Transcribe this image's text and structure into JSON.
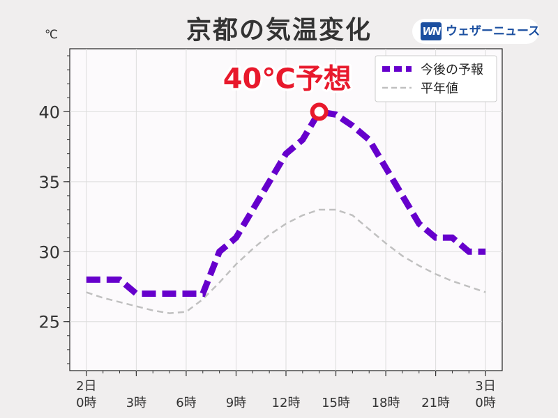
{
  "header": {
    "title": "京都の気温変化",
    "logo": {
      "mark": "WN",
      "text": "ウェザーニュース",
      "color": "#1b4fa0"
    }
  },
  "chart_data": {
    "type": "line",
    "title": "京都の気温変化",
    "ylabel": "℃",
    "xlabel": "",
    "ylim": [
      21.5,
      44.5
    ],
    "xlim": [
      -1,
      25
    ],
    "yticks": [
      25,
      30,
      35,
      40
    ],
    "grid": true,
    "legend_placement": "top-right",
    "xtick_labels": [
      {
        "x": 0,
        "lines": [
          "2日",
          "0時"
        ]
      },
      {
        "x": 3,
        "lines": [
          "3時"
        ]
      },
      {
        "x": 6,
        "lines": [
          "6時"
        ]
      },
      {
        "x": 9,
        "lines": [
          "9時"
        ]
      },
      {
        "x": 12,
        "lines": [
          "12時"
        ]
      },
      {
        "x": 15,
        "lines": [
          "15時"
        ]
      },
      {
        "x": 18,
        "lines": [
          "18時"
        ]
      },
      {
        "x": 21,
        "lines": [
          "21時"
        ]
      },
      {
        "x": 24,
        "lines": [
          "3日",
          "0時"
        ]
      }
    ],
    "series": [
      {
        "name": "今後の予報",
        "color": "#6600cc",
        "style": "thick-dashed",
        "x": [
          0,
          1,
          2,
          3,
          4,
          5,
          6,
          7,
          8,
          9,
          10,
          11,
          12,
          13,
          14,
          15,
          16,
          17,
          18,
          19,
          20,
          21,
          22,
          23,
          24
        ],
        "values": [
          28,
          28,
          28,
          27,
          27,
          27,
          27,
          27,
          30,
          31,
          33,
          35,
          37,
          38,
          40,
          39.8,
          39,
          38,
          36,
          34,
          32,
          31,
          31,
          30,
          30
        ]
      },
      {
        "name": "平年値",
        "color": "#c0c0c0",
        "style": "thin-dashed",
        "x": [
          0,
          1,
          2,
          3,
          4,
          5,
          6,
          7,
          8,
          9,
          10,
          11,
          12,
          13,
          14,
          15,
          16,
          17,
          18,
          19,
          20,
          21,
          22,
          23,
          24
        ],
        "values": [
          27.1,
          26.7,
          26.4,
          26.1,
          25.8,
          25.6,
          25.7,
          26.6,
          27.8,
          29.1,
          30.2,
          31.2,
          32,
          32.6,
          33,
          33,
          32.6,
          31.6,
          30.6,
          29.7,
          29,
          28.4,
          27.9,
          27.5,
          27.1
        ]
      }
    ],
    "annotations": [
      {
        "text": "40℃予想",
        "x": 14,
        "y": 40,
        "color": "#e8192c"
      }
    ]
  }
}
